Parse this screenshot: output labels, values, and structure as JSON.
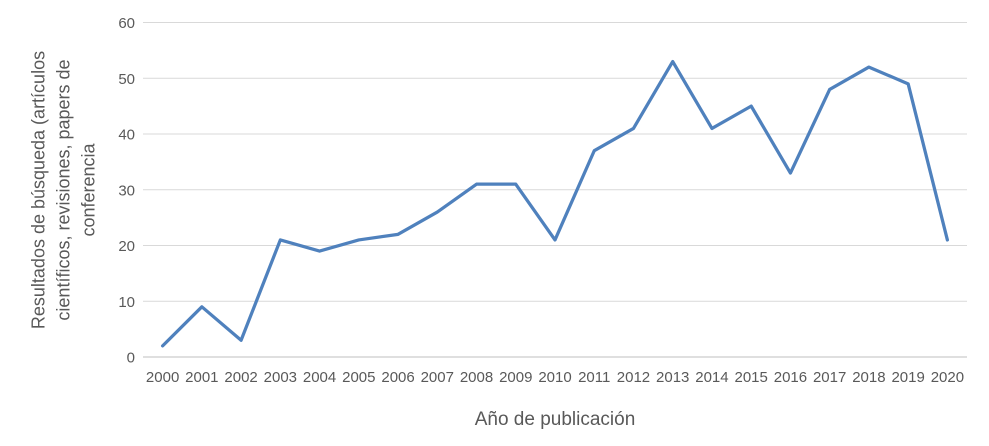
{
  "chart_data": {
    "type": "line",
    "categories": [
      "2000",
      "2001",
      "2002",
      "2003",
      "2004",
      "2005",
      "2006",
      "2007",
      "2008",
      "2009",
      "2010",
      "2011",
      "2012",
      "2013",
      "2014",
      "2015",
      "2016",
      "2017",
      "2018",
      "2019",
      "2020"
    ],
    "values": [
      2,
      9,
      3,
      21,
      19,
      21,
      22,
      26,
      31,
      31,
      21,
      37,
      41,
      53,
      41,
      45,
      33,
      48,
      52,
      49,
      21
    ],
    "title": "",
    "xlabel": "Año de publicación",
    "ylabel": "Resultados de búsqueda (artículos científicos, revisiones, papers de conferencia",
    "ylabel_lines": [
      "Resultados de búsqueda (artículos",
      "científicos, revisiones, papers de",
      "conferencia"
    ],
    "yticks": [
      0,
      10,
      20,
      30,
      40,
      50,
      60
    ],
    "ylim": [
      0,
      60
    ],
    "grid": true,
    "legend": false,
    "colors": {
      "line": "#4F81BD",
      "gridline": "#D9D9D9",
      "axis_line": "#BFBFBF",
      "text": "#595959",
      "background": "#FFFFFF"
    }
  }
}
